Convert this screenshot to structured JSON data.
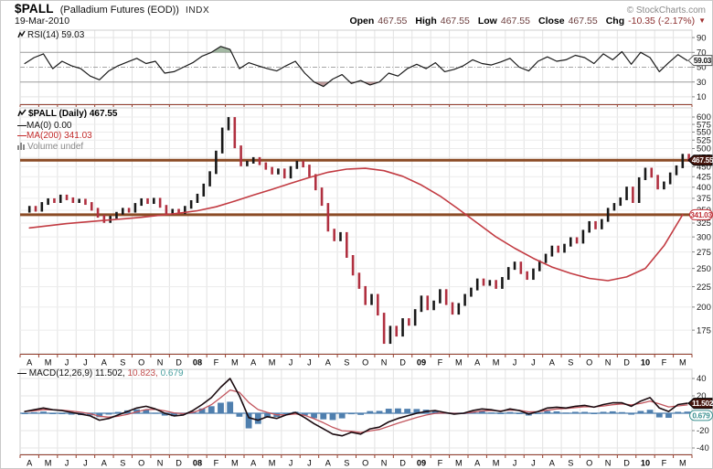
{
  "header": {
    "symbol": "$PALL",
    "name": "(Palladium Futures (EOD))",
    "exchange": "INDX",
    "date": "19-Mar-2010",
    "copyright": "© StockCharts.com",
    "quote": {
      "open_label": "Open",
      "open": "467.55",
      "high_label": "High",
      "high": "467.55",
      "low_label": "Low",
      "low": "467.55",
      "close_label": "Close",
      "close": "467.55",
      "chg_label": "Chg",
      "chg": "-10.35 (-2.17%)",
      "chg_arrow": "▼"
    }
  },
  "rsi_panel": {
    "legend": "RSI(14) 59.03",
    "callout": "59.03"
  },
  "main_panel": {
    "legend_symbol": "$PALL (Daily) 467.55",
    "legend_ma0": "MA(0) 0.00",
    "legend_ma200": "MA(200) 341.03",
    "legend_volume": "Volume undef",
    "callout_price": "467.55",
    "callout_ma": "341.03"
  },
  "macd_panel": {
    "legend_dash": "—",
    "legend_name": "MACD(12,26,9)",
    "legend_macd": "11.502,",
    "legend_signal": "10.823,",
    "legend_hist": "0.679",
    "callout_macd": "11.502",
    "callout_hist": "0.679"
  },
  "colors": {
    "trendline_brown": "#8B4B25",
    "ma200_red": "#c23b42",
    "candle_up": "#181818",
    "candle_down": "#b03040",
    "macd_line": "#1b0b10",
    "signal_line": "#c2565e",
    "histogram_blue": "#4f7fae",
    "zero_line_blue": "#6b93bb",
    "overbought_green": "#8fa98f",
    "oversold_red": "#a57575",
    "callout_dark": "#45150d",
    "axis_maroon": "#954030"
  },
  "x_axis": {
    "months": [
      "A",
      "M",
      "J",
      "J",
      "A",
      "S",
      "O",
      "N",
      "D",
      "08",
      "F",
      "M",
      "A",
      "M",
      "J",
      "J",
      "A",
      "S",
      "O",
      "N",
      "D",
      "09",
      "F",
      "M",
      "A",
      "M",
      "J",
      "J",
      "A",
      "S",
      "O",
      "N",
      "D",
      "10",
      "F",
      "M"
    ],
    "bold_indices": [
      9,
      21,
      33
    ]
  },
  "chart_data": [
    {
      "type": "line",
      "panel": "rsi",
      "title": "RSI(14)",
      "ylim": [
        0,
        100
      ],
      "yticks": [
        90,
        70,
        50,
        30,
        10
      ],
      "overbought": 70,
      "oversold": 30,
      "last_value": 59.03,
      "values": [
        55,
        63,
        68,
        48,
        58,
        52,
        48,
        38,
        33,
        45,
        52,
        57,
        62,
        55,
        58,
        42,
        44,
        50,
        56,
        65,
        70,
        78,
        74,
        48,
        56,
        52,
        48,
        45,
        52,
        58,
        42,
        30,
        24,
        34,
        40,
        28,
        32,
        26,
        30,
        42,
        38,
        48,
        54,
        48,
        56,
        44,
        47,
        52,
        60,
        55,
        53,
        57,
        62,
        50,
        45,
        58,
        64,
        58,
        60,
        66,
        63,
        55,
        68,
        60,
        71,
        54,
        70,
        63,
        44,
        56,
        67,
        59.03
      ]
    },
    {
      "type": "candlestick",
      "panel": "main",
      "title": "$PALL (Daily)",
      "yscale": "log",
      "ylim": [
        155,
        632
      ],
      "yticks": [
        600,
        575,
        550,
        525,
        500,
        475,
        450,
        425,
        400,
        375,
        350,
        325,
        300,
        275,
        250,
        225,
        200,
        175
      ],
      "hlines": [
        467.55,
        341.03
      ],
      "last_close": 467.55,
      "close": [
        348,
        356,
        350,
        364,
        372,
        368,
        380,
        374,
        368,
        371,
        364,
        352,
        338,
        328,
        336,
        344,
        352,
        348,
        362,
        372,
        366,
        373,
        358,
        344,
        350,
        345,
        356,
        368,
        382,
        405,
        435,
        490,
        560,
        595,
        505,
        455,
        462,
        472,
        458,
        446,
        434,
        442,
        424,
        448,
        462,
        452,
        428,
        396,
        362,
        312,
        295,
        306,
        268,
        242,
        224,
        204,
        214,
        192,
        163,
        178,
        170,
        186,
        181,
        196,
        212,
        198,
        206,
        220,
        204,
        193,
        203,
        214,
        222,
        234,
        228,
        232,
        224,
        236,
        250,
        258,
        244,
        236,
        248,
        260,
        270,
        283,
        276,
        286,
        297,
        291,
        310,
        326,
        316,
        330,
        352,
        362,
        374,
        398,
        368,
        420,
        444,
        426,
        398,
        410,
        432,
        450,
        481,
        467.55
      ],
      "series": [
        {
          "name": "MA(0)",
          "last": 0.0,
          "values": []
        },
        {
          "name": "MA(200)",
          "last": 341.03,
          "values": [
            316,
            320,
            324,
            327,
            330,
            333,
            336,
            340,
            344,
            349,
            357,
            369,
            382,
            395,
            409,
            423,
            436,
            444,
            446,
            440,
            426,
            405,
            380,
            352,
            325,
            300,
            281,
            265,
            252,
            243,
            236,
            233,
            238,
            250,
            285,
            341
          ]
        }
      ]
    },
    {
      "type": "line+bar",
      "panel": "macd",
      "title": "MACD(12,26,9)",
      "ylim": [
        -47,
        50
      ],
      "yticks": [
        40,
        20,
        -20,
        -40
      ],
      "macd_last": 11.502,
      "signal_last": 10.823,
      "hist_last": 0.679,
      "macd": [
        2,
        4,
        6,
        4,
        3,
        1,
        -1,
        -3,
        -8,
        -6,
        -2,
        2,
        6,
        8,
        5,
        0,
        -3,
        -2,
        3,
        10,
        18,
        30,
        40,
        20,
        -5,
        -8,
        -4,
        -6,
        -2,
        1,
        -5,
        -12,
        -18,
        -24,
        -26,
        -22,
        -24,
        -18,
        -16,
        -10,
        -6,
        -3,
        0,
        2,
        3,
        1,
        -1,
        0,
        3,
        5,
        4,
        2,
        5,
        3,
        -1,
        2,
        6,
        7,
        6,
        8,
        9,
        7,
        10,
        12,
        12,
        8,
        14,
        18,
        6,
        2,
        10,
        11.502
      ]
    }
  ]
}
